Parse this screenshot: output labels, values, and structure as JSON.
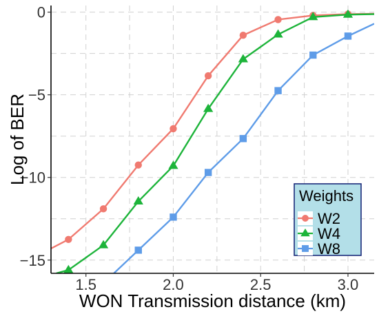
{
  "chart_data": {
    "type": "line",
    "xlabel": "WON Transmission distance (km)",
    "ylabel": "Log of BER",
    "xlim": [
      1.3,
      3.15
    ],
    "ylim": [
      -15.8,
      0.4
    ],
    "x_ticks": [
      "1.5",
      "2.0",
      "2.5",
      "3.0"
    ],
    "x_tick_values": [
      1.5,
      2.0,
      2.5,
      3.0
    ],
    "y_ticks": [
      "0",
      "-5",
      "-10",
      "-15"
    ],
    "y_tick_values": [
      0,
      -5,
      -10,
      -15
    ],
    "grid": true,
    "legend": {
      "title": "Weights",
      "placement": "bottom-right",
      "background": "#b3dfe8"
    },
    "series": [
      {
        "name": "W2",
        "color": "#f07a70",
        "marker": "circle",
        "points": [
          [
            1.4,
            -13.75
          ],
          [
            1.6,
            -11.9
          ],
          [
            1.8,
            -9.25
          ],
          [
            2.0,
            -7.05
          ],
          [
            2.2,
            -3.85
          ],
          [
            2.4,
            -1.4
          ],
          [
            2.6,
            -0.45
          ],
          [
            2.8,
            -0.2
          ],
          [
            3.0,
            -0.12
          ]
        ],
        "curve": [
          [
            1.3,
            -14.3
          ],
          [
            1.4,
            -13.75
          ],
          [
            1.6,
            -11.9
          ],
          [
            1.8,
            -9.25
          ],
          [
            2.0,
            -7.05
          ],
          [
            2.2,
            -3.85
          ],
          [
            2.4,
            -1.4
          ],
          [
            2.6,
            -0.45
          ],
          [
            2.8,
            -0.2
          ],
          [
            3.0,
            -0.12
          ],
          [
            3.15,
            -0.1
          ]
        ]
      },
      {
        "name": "W4",
        "color": "#1db43a",
        "marker": "triangle",
        "points": [
          [
            1.4,
            -15.6
          ],
          [
            1.6,
            -14.1
          ],
          [
            1.8,
            -11.45
          ],
          [
            2.0,
            -9.3
          ],
          [
            2.2,
            -5.85
          ],
          [
            2.4,
            -2.85
          ],
          [
            2.6,
            -1.35
          ],
          [
            2.8,
            -0.3
          ],
          [
            3.0,
            -0.15
          ]
        ],
        "curve": [
          [
            1.33,
            -15.8
          ],
          [
            1.4,
            -15.6
          ],
          [
            1.6,
            -14.1
          ],
          [
            1.8,
            -11.45
          ],
          [
            2.0,
            -9.3
          ],
          [
            2.2,
            -5.85
          ],
          [
            2.4,
            -2.85
          ],
          [
            2.6,
            -1.35
          ],
          [
            2.8,
            -0.3
          ],
          [
            3.0,
            -0.15
          ],
          [
            3.15,
            -0.12
          ]
        ]
      },
      {
        "name": "W8",
        "color": "#5e9ce8",
        "marker": "square",
        "points": [
          [
            1.8,
            -14.4
          ],
          [
            2.0,
            -12.4
          ],
          [
            2.2,
            -9.7
          ],
          [
            2.4,
            -7.65
          ],
          [
            2.6,
            -4.75
          ],
          [
            2.8,
            -2.6
          ],
          [
            3.0,
            -1.45
          ]
        ],
        "curve": [
          [
            1.66,
            -15.8
          ],
          [
            1.8,
            -14.4
          ],
          [
            2.0,
            -12.4
          ],
          [
            2.2,
            -9.7
          ],
          [
            2.4,
            -7.65
          ],
          [
            2.6,
            -4.75
          ],
          [
            2.8,
            -2.6
          ],
          [
            3.0,
            -1.45
          ],
          [
            3.15,
            -0.7
          ]
        ]
      }
    ]
  }
}
